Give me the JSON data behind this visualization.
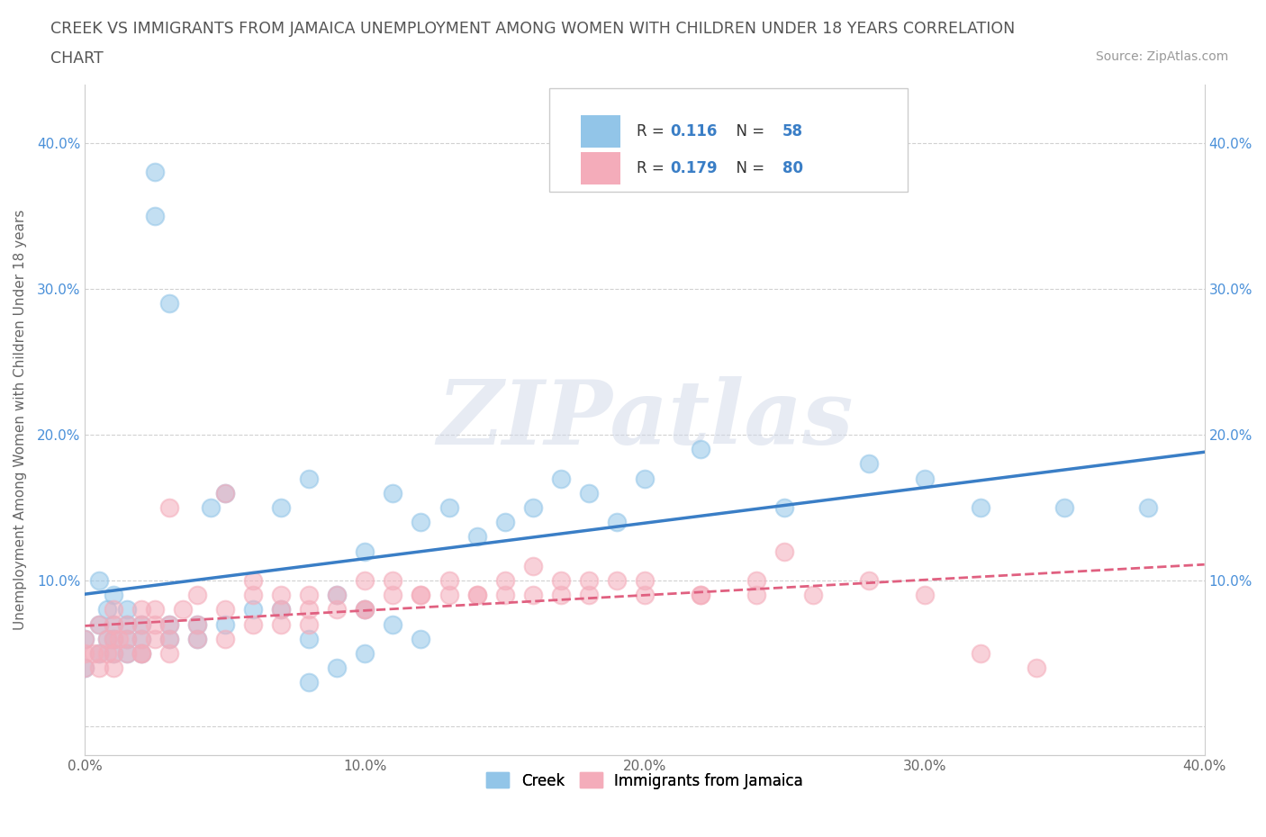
{
  "title_line1": "CREEK VS IMMIGRANTS FROM JAMAICA UNEMPLOYMENT AMONG WOMEN WITH CHILDREN UNDER 18 YEARS CORRELATION",
  "title_line2": "CHART",
  "source_text": "Source: ZipAtlas.com",
  "ylabel": "Unemployment Among Women with Children Under 18 years",
  "xmin": 0.0,
  "xmax": 0.4,
  "ymin": -0.02,
  "ymax": 0.44,
  "yticks": [
    0.0,
    0.1,
    0.2,
    0.3,
    0.4
  ],
  "xticks": [
    0.0,
    0.1,
    0.2,
    0.3,
    0.4
  ],
  "xtick_labels": [
    "0.0%",
    "10.0%",
    "20.0%",
    "30.0%",
    "40.0%"
  ],
  "ytick_labels_left": [
    "",
    "10.0%",
    "20.0%",
    "30.0%",
    "40.0%"
  ],
  "ytick_labels_right": [
    "",
    "10.0%",
    "20.0%",
    "30.0%",
    "40.0%"
  ],
  "creek_color": "#92C5E8",
  "jamaica_color": "#F4ACBA",
  "creek_R": 0.116,
  "creek_N": 58,
  "jamaica_R": 0.179,
  "jamaica_N": 80,
  "watermark": "ZIPatlas",
  "creek_line_color": "#3A7EC6",
  "jamaica_line_color": "#E06080",
  "grid_color": "#cccccc",
  "background_color": "#ffffff",
  "legend_edge_color": "#cccccc",
  "tick_color": "#4a90d9",
  "label_color": "#666666",
  "creek_scatter_x": [
    0.0,
    0.0,
    0.005,
    0.005,
    0.005,
    0.008,
    0.008,
    0.01,
    0.01,
    0.01,
    0.01,
    0.015,
    0.015,
    0.015,
    0.015,
    0.02,
    0.02,
    0.02,
    0.025,
    0.025,
    0.03,
    0.03,
    0.03,
    0.04,
    0.04,
    0.045,
    0.05,
    0.05,
    0.06,
    0.07,
    0.07,
    0.08,
    0.08,
    0.09,
    0.1,
    0.1,
    0.11,
    0.12,
    0.13,
    0.14,
    0.15,
    0.16,
    0.17,
    0.18,
    0.19,
    0.2,
    0.22,
    0.25,
    0.28,
    0.3,
    0.32,
    0.35,
    0.38,
    0.08,
    0.09,
    0.1,
    0.11,
    0.12
  ],
  "creek_scatter_y": [
    0.04,
    0.06,
    0.05,
    0.07,
    0.1,
    0.06,
    0.08,
    0.05,
    0.06,
    0.07,
    0.09,
    0.05,
    0.06,
    0.07,
    0.08,
    0.05,
    0.06,
    0.07,
    0.35,
    0.38,
    0.06,
    0.07,
    0.29,
    0.06,
    0.07,
    0.15,
    0.07,
    0.16,
    0.08,
    0.08,
    0.15,
    0.06,
    0.17,
    0.09,
    0.08,
    0.12,
    0.16,
    0.14,
    0.15,
    0.13,
    0.14,
    0.15,
    0.17,
    0.16,
    0.14,
    0.17,
    0.19,
    0.15,
    0.18,
    0.17,
    0.15,
    0.15,
    0.15,
    0.03,
    0.04,
    0.05,
    0.07,
    0.06
  ],
  "jamaica_scatter_x": [
    0.0,
    0.0,
    0.0,
    0.003,
    0.005,
    0.005,
    0.005,
    0.008,
    0.008,
    0.01,
    0.01,
    0.01,
    0.01,
    0.012,
    0.015,
    0.015,
    0.015,
    0.02,
    0.02,
    0.02,
    0.02,
    0.025,
    0.025,
    0.025,
    0.03,
    0.03,
    0.03,
    0.035,
    0.04,
    0.04,
    0.05,
    0.05,
    0.06,
    0.06,
    0.07,
    0.07,
    0.08,
    0.08,
    0.09,
    0.1,
    0.1,
    0.11,
    0.12,
    0.13,
    0.14,
    0.15,
    0.16,
    0.17,
    0.18,
    0.19,
    0.2,
    0.22,
    0.24,
    0.25,
    0.26,
    0.28,
    0.3,
    0.32,
    0.34,
    0.01,
    0.02,
    0.03,
    0.04,
    0.05,
    0.06,
    0.07,
    0.08,
    0.09,
    0.1,
    0.11,
    0.12,
    0.13,
    0.14,
    0.15,
    0.16,
    0.17,
    0.18,
    0.2,
    0.22,
    0.24
  ],
  "jamaica_scatter_y": [
    0.04,
    0.05,
    0.06,
    0.05,
    0.04,
    0.05,
    0.07,
    0.05,
    0.06,
    0.05,
    0.06,
    0.07,
    0.08,
    0.06,
    0.05,
    0.06,
    0.07,
    0.05,
    0.06,
    0.07,
    0.08,
    0.06,
    0.07,
    0.08,
    0.06,
    0.07,
    0.15,
    0.08,
    0.07,
    0.09,
    0.08,
    0.16,
    0.09,
    0.1,
    0.08,
    0.09,
    0.08,
    0.09,
    0.09,
    0.08,
    0.1,
    0.1,
    0.09,
    0.1,
    0.09,
    0.1,
    0.11,
    0.1,
    0.1,
    0.1,
    0.1,
    0.09,
    0.1,
    0.12,
    0.09,
    0.1,
    0.09,
    0.05,
    0.04,
    0.04,
    0.05,
    0.05,
    0.06,
    0.06,
    0.07,
    0.07,
    0.07,
    0.08,
    0.08,
    0.09,
    0.09,
    0.09,
    0.09,
    0.09,
    0.09,
    0.09,
    0.09,
    0.09,
    0.09,
    0.09
  ]
}
